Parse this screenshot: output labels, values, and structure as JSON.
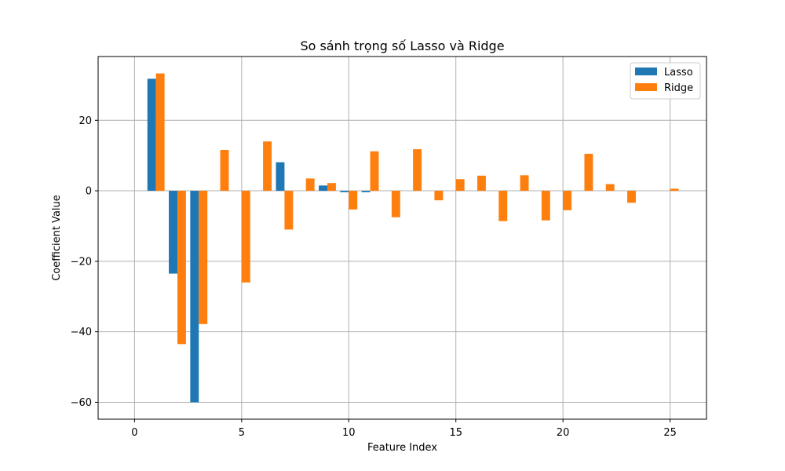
{
  "chart_data": {
    "type": "bar",
    "title": "So sánh trọng số Lasso và Ridge",
    "xlabel": "Feature Index",
    "ylabel": "Coefficient Value",
    "x": [
      1,
      2,
      3,
      4,
      5,
      6,
      7,
      8,
      9,
      10,
      11,
      12,
      13,
      14,
      15,
      16,
      17,
      18,
      19,
      20,
      21,
      22,
      23,
      24,
      25
    ],
    "xlim": [
      -1.7,
      26.7
    ],
    "ylim": [
      -64.8,
      38.1
    ],
    "xticks": [
      0,
      5,
      10,
      15,
      20,
      25
    ],
    "yticks": [
      -60,
      -40,
      -20,
      0,
      20
    ],
    "xtick_labels": [
      "0",
      "5",
      "10",
      "15",
      "20",
      "25"
    ],
    "ytick_labels": [
      "−60",
      "−40",
      "−20",
      "0",
      "20"
    ],
    "grid": true,
    "legend_position": "top-right",
    "series": [
      {
        "name": "Lasso",
        "color": "#1f77b4",
        "values": [
          31.8,
          -23.5,
          -60.0,
          0,
          0,
          0,
          8.1,
          0,
          1.5,
          -0.4,
          -0.4,
          0,
          0,
          0,
          0,
          0,
          0,
          0,
          0,
          0,
          0,
          0,
          0,
          0,
          0
        ]
      },
      {
        "name": "Ridge",
        "color": "#ff7f0e",
        "values": [
          33.3,
          -43.5,
          -37.8,
          11.6,
          -26.0,
          14.0,
          -11.0,
          3.5,
          2.2,
          -5.3,
          11.2,
          -7.5,
          11.8,
          -2.7,
          3.3,
          4.3,
          -8.6,
          4.4,
          -8.4,
          -5.5,
          10.5,
          1.9,
          -3.4,
          0,
          0.6
        ]
      }
    ]
  }
}
